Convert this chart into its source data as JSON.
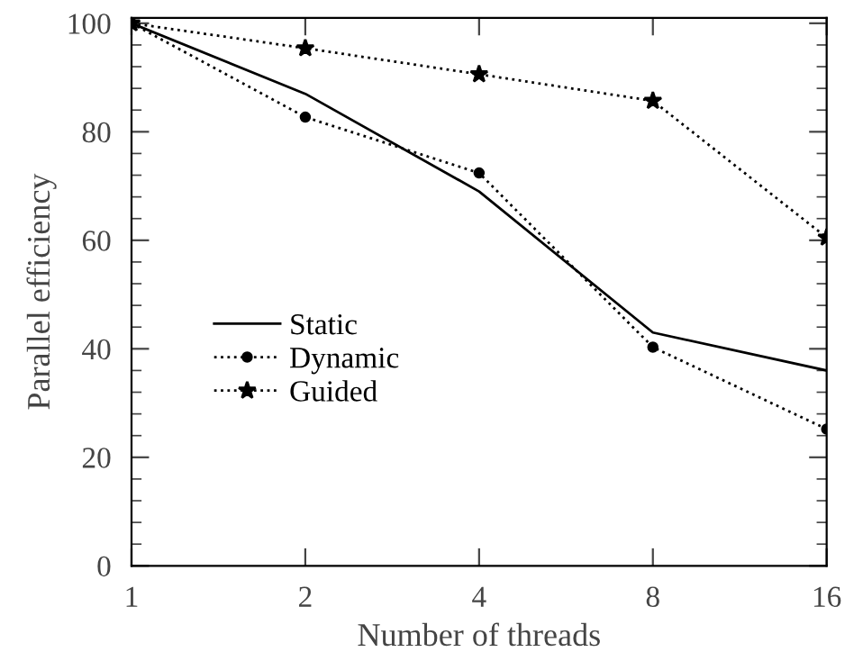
{
  "chart_data": {
    "type": "line",
    "xlabel": "Number of threads",
    "ylabel": "Parallel efficiency",
    "x": [
      1,
      2,
      4,
      8,
      16
    ],
    "log": "x",
    "xlim": [
      1,
      16
    ],
    "xticks": [
      1,
      2,
      4,
      8,
      16
    ],
    "ylim": [
      0,
      101
    ],
    "yticks": [
      0,
      20,
      40,
      60,
      80,
      100
    ],
    "legend": "left",
    "grid": false,
    "series": [
      {
        "name": "Static",
        "color": "#000000",
        "line_style": "solid",
        "marker": "none",
        "values": [
          100,
          87,
          69,
          43,
          36
        ]
      },
      {
        "name": "Dynamic",
        "color": "#000000",
        "line_style": "dotted",
        "marker": "circle",
        "values": [
          100,
          82.7,
          72.4,
          40.3,
          25.2
        ]
      },
      {
        "name": "Guided",
        "color": "#000000",
        "line_style": "dotted",
        "marker": "star",
        "values": [
          100,
          95.4,
          90.6,
          85.7,
          60.5
        ]
      }
    ]
  }
}
